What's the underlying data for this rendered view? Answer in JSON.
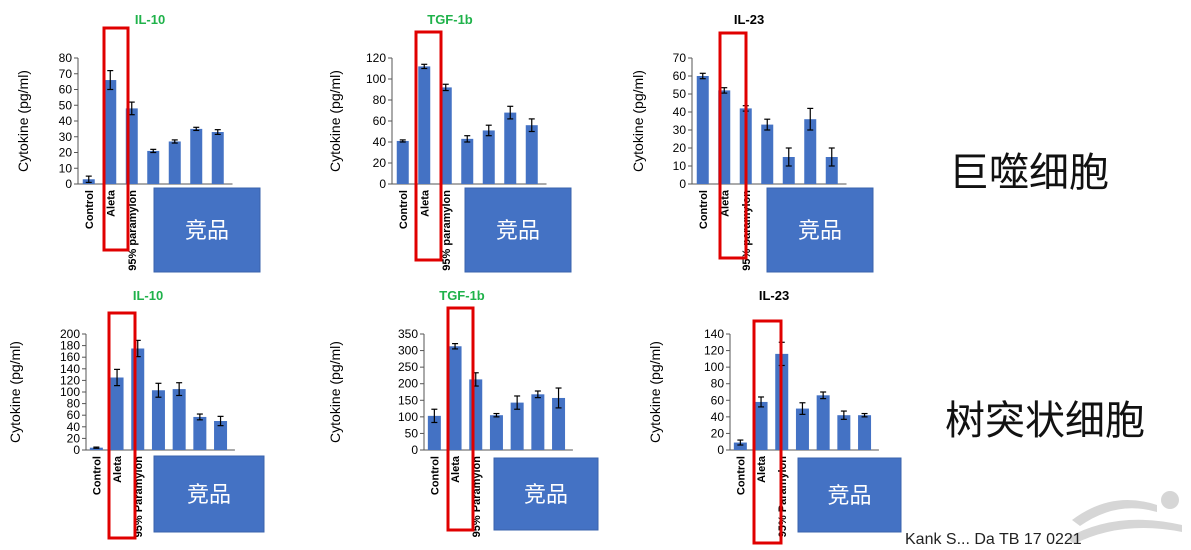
{
  "page": {
    "row_labels": [
      "巨噬细胞",
      "树突状细胞"
    ],
    "footer_text": "Kank S...  Da   TB 17 0221"
  },
  "style": {
    "bar_color": "#4472C4",
    "highlight_color": "#E00000",
    "title_green": "#1FB24A",
    "title_black": "#000000",
    "competitor_box_color": "#4472C4",
    "competitor_box_text_color": "#FFFFFF"
  },
  "chart_data": [
    {
      "type": "bar",
      "title": "IL-10",
      "title_color": "green",
      "ylabel": "Cytokine (pg/ml)",
      "ylim": [
        0,
        80
      ],
      "yticks": [
        0,
        10,
        20,
        30,
        40,
        50,
        60,
        70,
        80
      ],
      "categories": [
        "Control",
        "Aleta",
        "95% paramylon",
        "",
        "",
        "",
        ""
      ],
      "values": [
        3,
        66,
        48,
        21,
        27,
        35,
        33
      ],
      "errors": [
        2,
        6,
        4,
        1,
        1,
        1,
        1.5
      ],
      "highlight": "Aleta",
      "competitor_label": "竞品"
    },
    {
      "type": "bar",
      "title": "TGF-1b",
      "title_color": "green",
      "ylabel": "Cytokine (pg/ml)",
      "ylim": [
        0,
        120
      ],
      "yticks": [
        0,
        20,
        40,
        60,
        80,
        100,
        120
      ],
      "categories": [
        "Control",
        "Aleta",
        "95% paramylon",
        "",
        "",
        "",
        ""
      ],
      "values": [
        41,
        112,
        92,
        43,
        51,
        68,
        56
      ],
      "errors": [
        1,
        2,
        3,
        3,
        5,
        6,
        6
      ],
      "highlight": "Aleta",
      "competitor_label": "竞品"
    },
    {
      "type": "bar",
      "title": "IL-23",
      "title_color": "black",
      "ylabel": "Cytokine (pg/ml)",
      "ylim": [
        0,
        70
      ],
      "yticks": [
        0,
        10,
        20,
        30,
        40,
        50,
        60,
        70
      ],
      "categories": [
        "Control",
        "Aleta",
        "95% paramylon",
        "",
        "",
        "",
        ""
      ],
      "values": [
        60,
        52,
        42,
        33,
        15,
        36,
        15
      ],
      "errors": [
        1.5,
        1.5,
        1.5,
        3,
        5,
        6,
        5
      ],
      "highlight": "Aleta",
      "competitor_label": "竞品"
    },
    {
      "type": "bar",
      "title": "IL-10",
      "title_color": "green",
      "ylabel": "Cytokine (pg/ml)",
      "ylim": [
        0,
        200
      ],
      "yticks": [
        0,
        20,
        40,
        60,
        80,
        100,
        120,
        140,
        160,
        180,
        200
      ],
      "categories": [
        "Control",
        "Aleta",
        "95% Paramylon",
        "",
        "",
        "",
        ""
      ],
      "values": [
        4,
        125,
        175,
        103,
        105,
        57,
        50
      ],
      "errors": [
        1,
        14,
        14,
        12,
        11,
        5,
        8
      ],
      "highlight": "Aleta",
      "competitor_label": "竞品"
    },
    {
      "type": "bar",
      "title": "TGF-1b",
      "title_color": "green",
      "ylabel": "Cytokine (pg/ml)",
      "ylim": [
        0,
        350
      ],
      "yticks": [
        0,
        50,
        100,
        150,
        200,
        250,
        300,
        350
      ],
      "categories": [
        "Control",
        "Aleta",
        "95% Paramylon",
        "",
        "",
        "",
        ""
      ],
      "values": [
        103,
        313,
        213,
        105,
        143,
        168,
        157
      ],
      "errors": [
        20,
        8,
        20,
        5,
        20,
        10,
        30
      ],
      "highlight": "Aleta",
      "competitor_label": "竞品"
    },
    {
      "type": "bar",
      "title": "IL-23",
      "title_color": "black",
      "ylabel": "Cytokine (pg/ml)",
      "ylim": [
        0,
        140
      ],
      "yticks": [
        0,
        20,
        40,
        60,
        80,
        100,
        120,
        140
      ],
      "categories": [
        "Control",
        "Aleta",
        "95% Paramylon",
        "",
        "",
        "",
        ""
      ],
      "values": [
        9,
        58,
        116,
        50,
        66,
        42,
        42
      ],
      "errors": [
        3,
        6,
        14,
        7,
        4,
        5,
        2
      ],
      "highlight": "Aleta",
      "competitor_label": "竞品"
    }
  ]
}
